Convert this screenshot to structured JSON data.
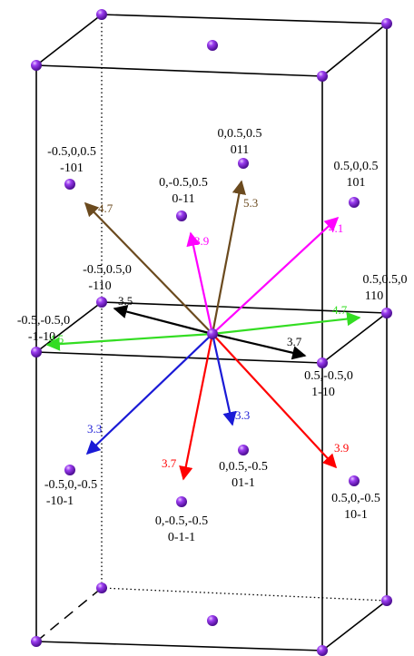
{
  "colors": {
    "atom": "#7a1fd6",
    "black": "#000000",
    "brown": "#6b4a1e",
    "magenta": "#ff00ff",
    "green": "#33dd22",
    "blue": "#1a1ad6",
    "red": "#ff0000"
  },
  "labels": {
    "l_m101_a": "-0.5,0,0.5",
    "l_m101_b": "-101",
    "l_011_a": "0,0.5,0.5",
    "l_011_b": "011",
    "l_0m11_a": "0,-0.5,0.5",
    "l_0m11_b": "0-11",
    "l_101_a": "0.5,0,0.5",
    "l_101_b": "101",
    "l_m110_a": "-0.5,0.5,0",
    "l_m110_b": "-110",
    "l_110_a": "0.5,0.5,0",
    "l_110_b": "110",
    "l_m1m10_a": "-0.5,-0.5,0",
    "l_m1m10_b": "-1-10",
    "l_1m10_a": "0.5,-0.5,0",
    "l_1m10_b": "1-10",
    "l_m10m1_a": "-0.5,0,-0.5",
    "l_m10m1_b": "-10-1",
    "l_01m1_a": "0,0.5,-0.5",
    "l_01m1_b": "01-1",
    "l_0m1m1_a": "0,-0.5,-0.5",
    "l_0m1m1_b": "0-1-1",
    "l_10m1_a": "0.5,0,-0.5",
    "l_10m1_b": "10-1"
  },
  "vectors": {
    "v_black_left": "3.5",
    "v_black_right": "3.7",
    "v_brown_left": "4.7",
    "v_brown_up": "5.3",
    "v_magenta_up": "3.9",
    "v_magenta_right": "4.1",
    "v_green_left": "4.5",
    "v_green_right": "4.7",
    "v_blue_left": "3.3",
    "v_blue_right": "3.3",
    "v_red_left": "3.7",
    "v_red_right": "3.9"
  }
}
